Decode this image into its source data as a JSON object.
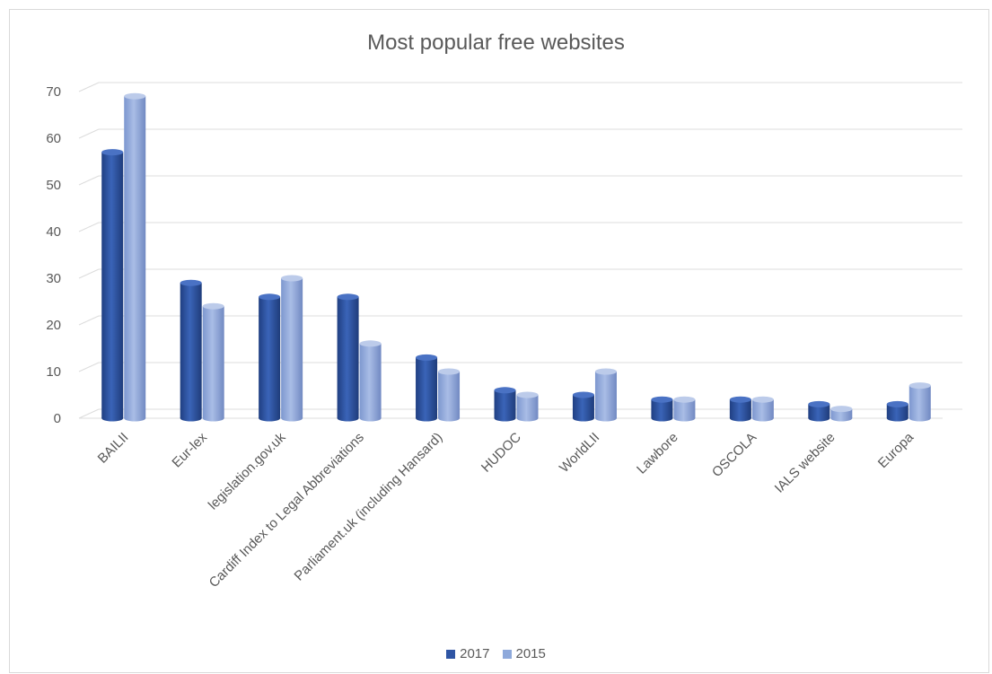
{
  "chart_data": {
    "type": "bar",
    "title": "Most popular free websites",
    "xlabel": "",
    "ylabel": "",
    "ylim": [
      0,
      70
    ],
    "yticks": [
      0,
      10,
      20,
      30,
      40,
      50,
      60,
      70
    ],
    "grid": true,
    "legend_position": "bottom",
    "categories": [
      "BAILII",
      "Eur-lex",
      "legislation.gov.uk",
      "Cardiff Index to Legal Abbreviations",
      "Parliament.uk (including Hansard)",
      "HUDOC",
      "WorldLII",
      "Lawbore",
      "OSCOLA",
      "IALS website",
      "Europa"
    ],
    "series": [
      {
        "name": "2017",
        "values": [
          57,
          29,
          26,
          26,
          13,
          6,
          5,
          4,
          4,
          3,
          3
        ],
        "color": "#2f55a4"
      },
      {
        "name": "2015",
        "values": [
          69,
          24,
          30,
          16,
          10,
          5,
          10,
          4,
          4,
          2,
          7
        ],
        "color": "#8ea9db"
      }
    ]
  }
}
